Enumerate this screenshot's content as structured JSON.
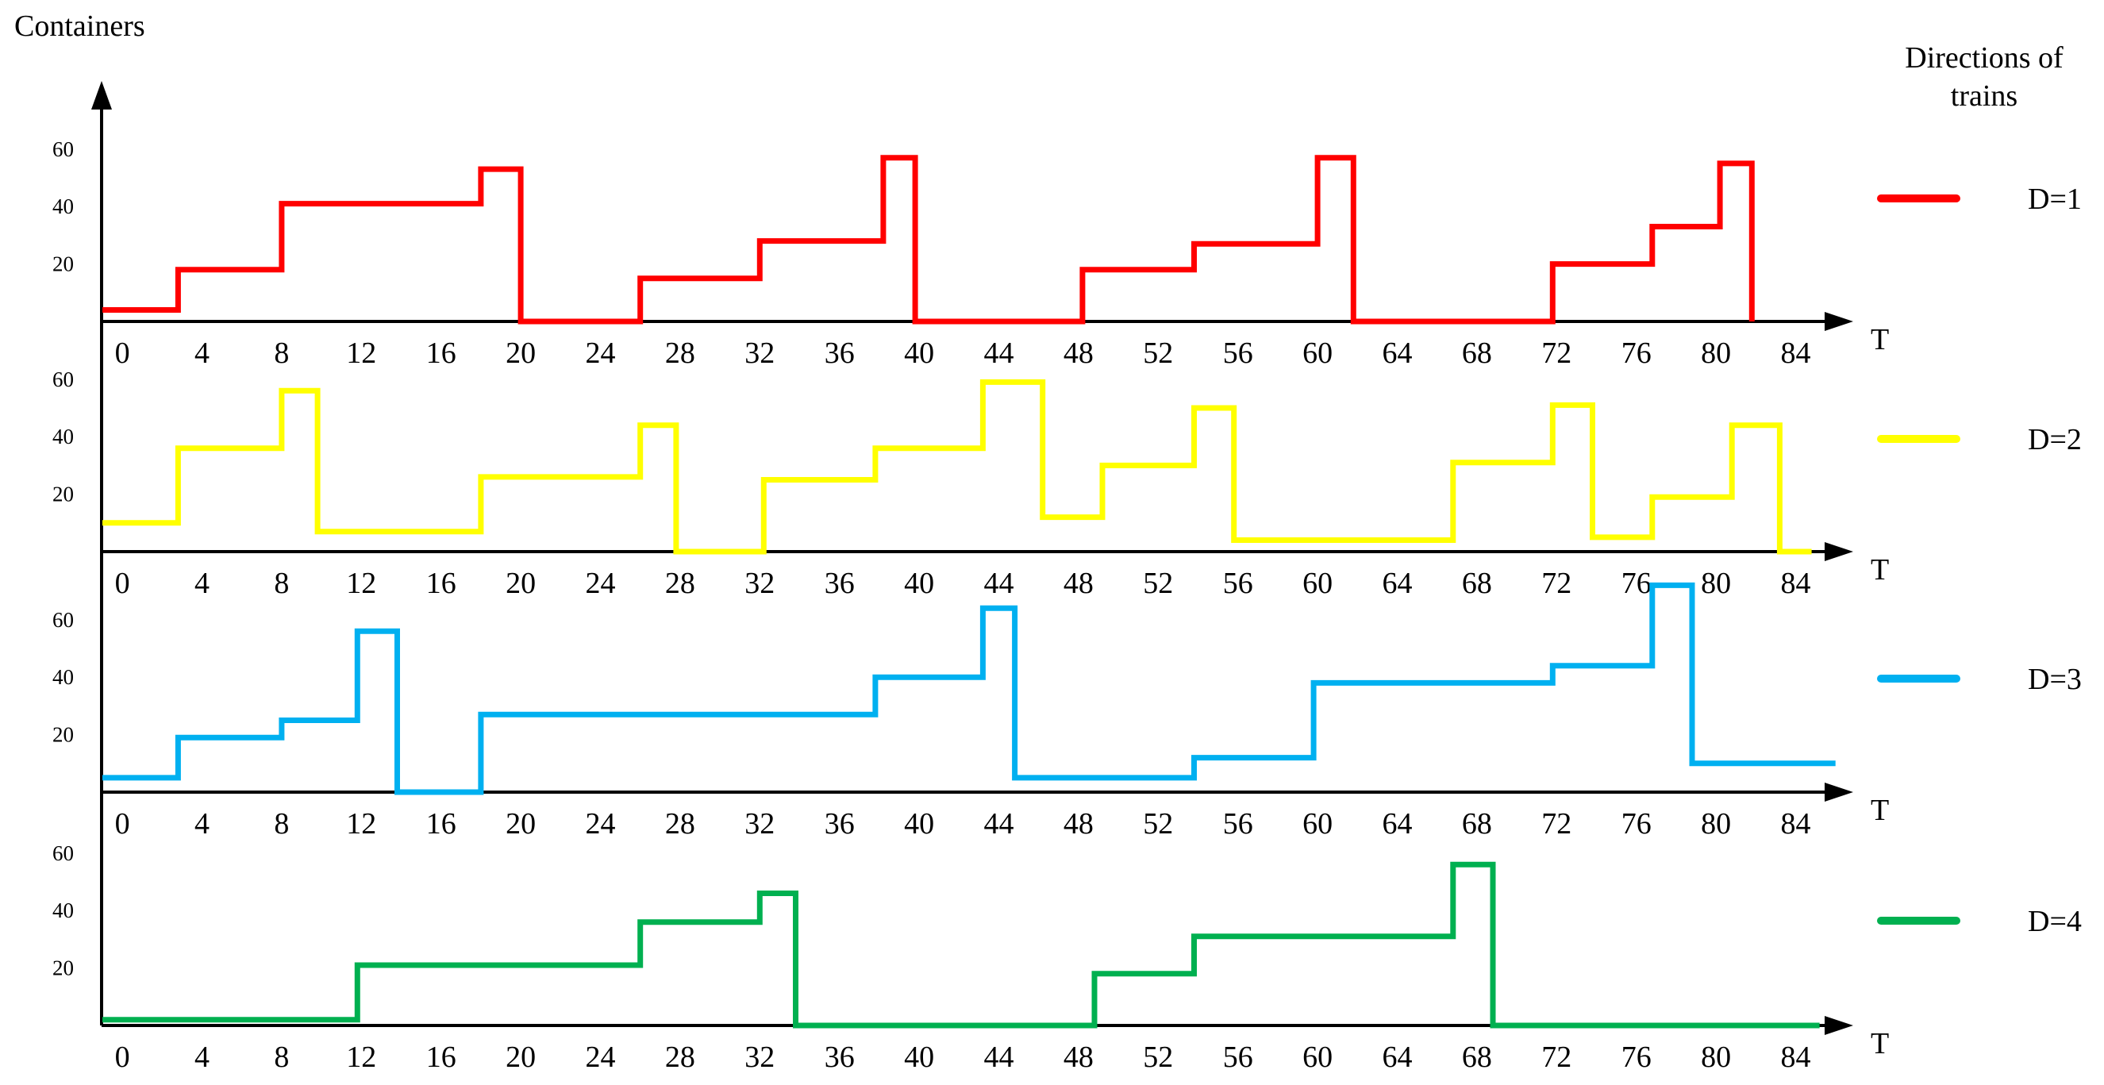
{
  "chart_data": {
    "type": "line",
    "step": true,
    "ylabel": "Containers",
    "xlabel": "T",
    "legend_title": "Directions of trains",
    "legend_position": "right",
    "yticks": [
      20,
      40,
      60
    ],
    "xticks": [
      0,
      4,
      8,
      12,
      16,
      20,
      24,
      28,
      32,
      36,
      40,
      44,
      48,
      52,
      56,
      60,
      64,
      68,
      72,
      76,
      80,
      84
    ],
    "xlim": [
      -1,
      86
    ],
    "ylim": [
      0,
      62
    ],
    "colors": {
      "D=1": "#ff0000",
      "D=2": "#ffff00",
      "D=3": "#00b0f0",
      "D=4": "#00b050"
    },
    "series": [
      {
        "name": "D=1",
        "color": "#ff0000",
        "points": [
          [
            -1,
            4
          ],
          [
            2.8,
            4
          ],
          [
            2.8,
            18
          ],
          [
            8,
            18
          ],
          [
            8,
            41
          ],
          [
            18,
            41
          ],
          [
            18,
            53
          ],
          [
            20,
            53
          ],
          [
            20,
            0
          ],
          [
            26,
            0
          ],
          [
            26,
            15
          ],
          [
            32,
            15
          ],
          [
            32,
            28
          ],
          [
            38.2,
            28
          ],
          [
            38.2,
            57
          ],
          [
            39.8,
            57
          ],
          [
            39.8,
            0
          ],
          [
            48.2,
            0
          ],
          [
            48.2,
            18
          ],
          [
            53.8,
            18
          ],
          [
            53.8,
            27
          ],
          [
            60,
            27
          ],
          [
            60,
            57
          ],
          [
            61.8,
            57
          ],
          [
            61.8,
            0
          ],
          [
            71.8,
            0
          ],
          [
            71.8,
            20
          ],
          [
            76.8,
            20
          ],
          [
            76.8,
            33
          ],
          [
            80.2,
            33
          ],
          [
            80.2,
            55
          ],
          [
            81.8,
            55
          ],
          [
            81.8,
            0
          ]
        ]
      },
      {
        "name": "D=2",
        "color": "#ffff00",
        "points": [
          [
            -1,
            10
          ],
          [
            2.8,
            10
          ],
          [
            2.8,
            36
          ],
          [
            8,
            36
          ],
          [
            8,
            56
          ],
          [
            9.8,
            56
          ],
          [
            9.8,
            7
          ],
          [
            18,
            7
          ],
          [
            18,
            26
          ],
          [
            26,
            26
          ],
          [
            26,
            44
          ],
          [
            27.8,
            44
          ],
          [
            27.8,
            0
          ],
          [
            32.2,
            0
          ],
          [
            32.2,
            25
          ],
          [
            37.8,
            25
          ],
          [
            37.8,
            36
          ],
          [
            43.2,
            36
          ],
          [
            43.2,
            59
          ],
          [
            46.2,
            59
          ],
          [
            46.2,
            12
          ],
          [
            49.2,
            12
          ],
          [
            49.2,
            30
          ],
          [
            53.8,
            30
          ],
          [
            53.8,
            50
          ],
          [
            55.8,
            50
          ],
          [
            55.8,
            4
          ],
          [
            66.8,
            4
          ],
          [
            66.8,
            31
          ],
          [
            71.8,
            31
          ],
          [
            71.8,
            51
          ],
          [
            73.8,
            51
          ],
          [
            73.8,
            5
          ],
          [
            76.8,
            5
          ],
          [
            76.8,
            19
          ],
          [
            80.8,
            19
          ],
          [
            80.8,
            44
          ],
          [
            83.2,
            44
          ],
          [
            83.2,
            0
          ],
          [
            84.8,
            0
          ]
        ]
      },
      {
        "name": "D=3",
        "color": "#00b0f0",
        "points": [
          [
            -1,
            5
          ],
          [
            2.8,
            5
          ],
          [
            2.8,
            19
          ],
          [
            8,
            19
          ],
          [
            8,
            25
          ],
          [
            11.8,
            25
          ],
          [
            11.8,
            56
          ],
          [
            13.8,
            56
          ],
          [
            13.8,
            0
          ],
          [
            18,
            0
          ],
          [
            18,
            27
          ],
          [
            37.8,
            27
          ],
          [
            37.8,
            40
          ],
          [
            43.2,
            40
          ],
          [
            43.2,
            64
          ],
          [
            44.8,
            64
          ],
          [
            44.8,
            5
          ],
          [
            53.8,
            5
          ],
          [
            53.8,
            12
          ],
          [
            59.8,
            12
          ],
          [
            59.8,
            38
          ],
          [
            71.8,
            38
          ],
          [
            71.8,
            44
          ],
          [
            76.8,
            44
          ],
          [
            76.8,
            72
          ],
          [
            78.8,
            72
          ],
          [
            78.8,
            10
          ],
          [
            86,
            10
          ]
        ]
      },
      {
        "name": "D=4",
        "color": "#00b050",
        "points": [
          [
            -1,
            2
          ],
          [
            11.8,
            2
          ],
          [
            11.8,
            21
          ],
          [
            26,
            21
          ],
          [
            26,
            36
          ],
          [
            32,
            36
          ],
          [
            32,
            46
          ],
          [
            33.8,
            46
          ],
          [
            33.8,
            0
          ],
          [
            48.8,
            0
          ],
          [
            48.8,
            18
          ],
          [
            53.8,
            18
          ],
          [
            53.8,
            31
          ],
          [
            66.8,
            31
          ],
          [
            66.8,
            56
          ],
          [
            68.8,
            56
          ],
          [
            68.8,
            0
          ],
          [
            85.2,
            0
          ]
        ]
      }
    ]
  }
}
